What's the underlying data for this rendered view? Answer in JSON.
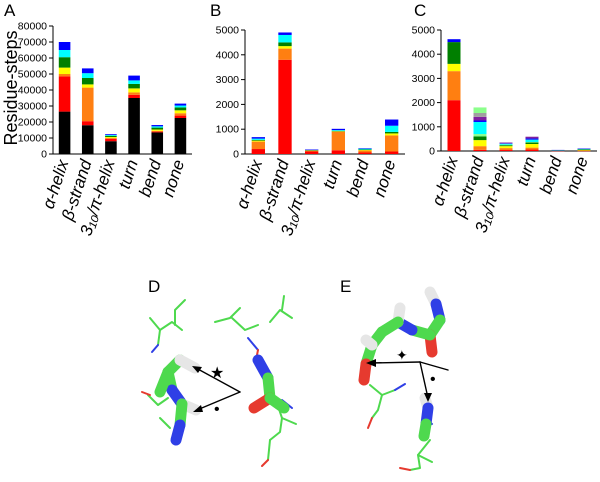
{
  "colors": {
    "black": "#000000",
    "red": "#ff0000",
    "orange": "#ff7f11",
    "yellow": "#ffff00",
    "green": "#007f00",
    "lightgreen": "#8cff8c",
    "cyan": "#00ffff",
    "blue": "#0000ff",
    "purple": "#7f1f9f",
    "grey": "#a0a0a0",
    "molecule_carbon": "#4ed94e",
    "molecule_nitrogen": "#2f3fe6",
    "molecule_oxygen": "#e63a2f",
    "molecule_hydrogen": "#e6e6e6"
  },
  "chart_data": [
    {
      "panel_label": "A",
      "type": "bar",
      "stacked": true,
      "ylabel": "Residue-steps",
      "ylim": [
        0,
        80000
      ],
      "yticks": [
        "0",
        "10000",
        "20000",
        "30000",
        "40000",
        "50000",
        "60000",
        "70000",
        "80000"
      ],
      "categories": [
        "α-helix",
        "β-strand",
        "3₁₀/π-helix",
        "turn",
        "bend",
        "none"
      ],
      "series": [
        {
          "color": "black",
          "values": [
            26500,
            18000,
            8000,
            35000,
            13500,
            22500
          ]
        },
        {
          "color": "red",
          "values": [
            22000,
            2500,
            1500,
            2000,
            500,
            1500
          ]
        },
        {
          "color": "orange",
          "values": [
            1500,
            21000,
            500,
            1500,
            500,
            1500
          ]
        },
        {
          "color": "yellow",
          "values": [
            4000,
            2000,
            600,
            2500,
            800,
            1800
          ]
        },
        {
          "color": "green",
          "values": [
            6500,
            4000,
            800,
            2800,
            1200,
            1800
          ]
        },
        {
          "color": "cyan",
          "values": [
            4500,
            3000,
            500,
            2200,
            800,
            1200
          ]
        },
        {
          "color": "blue",
          "values": [
            5000,
            3000,
            500,
            3000,
            800,
            1200
          ]
        }
      ]
    },
    {
      "panel_label": "B",
      "type": "bar",
      "stacked": true,
      "ylim": [
        0,
        5000
      ],
      "yticks": [
        "0",
        "1000",
        "2000",
        "3000",
        "4000",
        "5000"
      ],
      "categories": [
        "α-helix",
        "β-strand",
        "3₁₀/π-helix",
        "turn",
        "bend",
        "none"
      ],
      "series": [
        {
          "color": "red",
          "values": [
            200,
            3800,
            100,
            150,
            60,
            100
          ]
        },
        {
          "color": "orange",
          "values": [
            300,
            450,
            50,
            750,
            80,
            650
          ]
        },
        {
          "color": "yellow",
          "values": [
            40,
            100,
            10,
            20,
            20,
            80
          ]
        },
        {
          "color": "green",
          "values": [
            30,
            150,
            5,
            15,
            20,
            60
          ]
        },
        {
          "color": "cyan",
          "values": [
            50,
            300,
            5,
            30,
            40,
            250
          ]
        },
        {
          "color": "blue",
          "values": [
            60,
            100,
            10,
            50,
            10,
            250
          ]
        }
      ]
    },
    {
      "panel_label": "C",
      "type": "bar",
      "stacked": true,
      "ylim": [
        0,
        5000
      ],
      "yticks": [
        "0",
        "1000",
        "2000",
        "3000",
        "4000",
        "5000"
      ],
      "categories": [
        "α-helix",
        "β-strand",
        "3₁₀/π-helix",
        "turn",
        "bend",
        "none"
      ],
      "series": [
        {
          "color": "red",
          "values": [
            2100,
            50,
            40,
            60,
            10,
            10
          ]
        },
        {
          "color": "orange",
          "values": [
            1200,
            150,
            80,
            80,
            10,
            20
          ]
        },
        {
          "color": "yellow",
          "values": [
            300,
            250,
            80,
            150,
            5,
            10
          ]
        },
        {
          "color": "green",
          "values": [
            900,
            150,
            40,
            60,
            5,
            30
          ]
        },
        {
          "color": "lightgreen",
          "values": [
            0,
            100,
            20,
            20,
            5,
            10
          ]
        },
        {
          "color": "cyan",
          "values": [
            0,
            500,
            40,
            100,
            5,
            10
          ]
        },
        {
          "color": "blue",
          "values": [
            120,
            60,
            20,
            50,
            5,
            10
          ]
        },
        {
          "color": "purple",
          "values": [
            0,
            150,
            30,
            70,
            0,
            0
          ]
        },
        {
          "color": "grey",
          "values": [
            0,
            160,
            0,
            0,
            0,
            0
          ]
        },
        {
          "color": "lightgreen",
          "values": [
            0,
            230,
            0,
            0,
            0,
            0
          ]
        }
      ]
    }
  ],
  "figure": {
    "panel_d_label": "D",
    "panel_e_label": "E",
    "panel_d_marks": {
      "star": "★",
      "dot": "•"
    },
    "panel_e_marks": {
      "star": "✦",
      "dot": "•"
    }
  }
}
